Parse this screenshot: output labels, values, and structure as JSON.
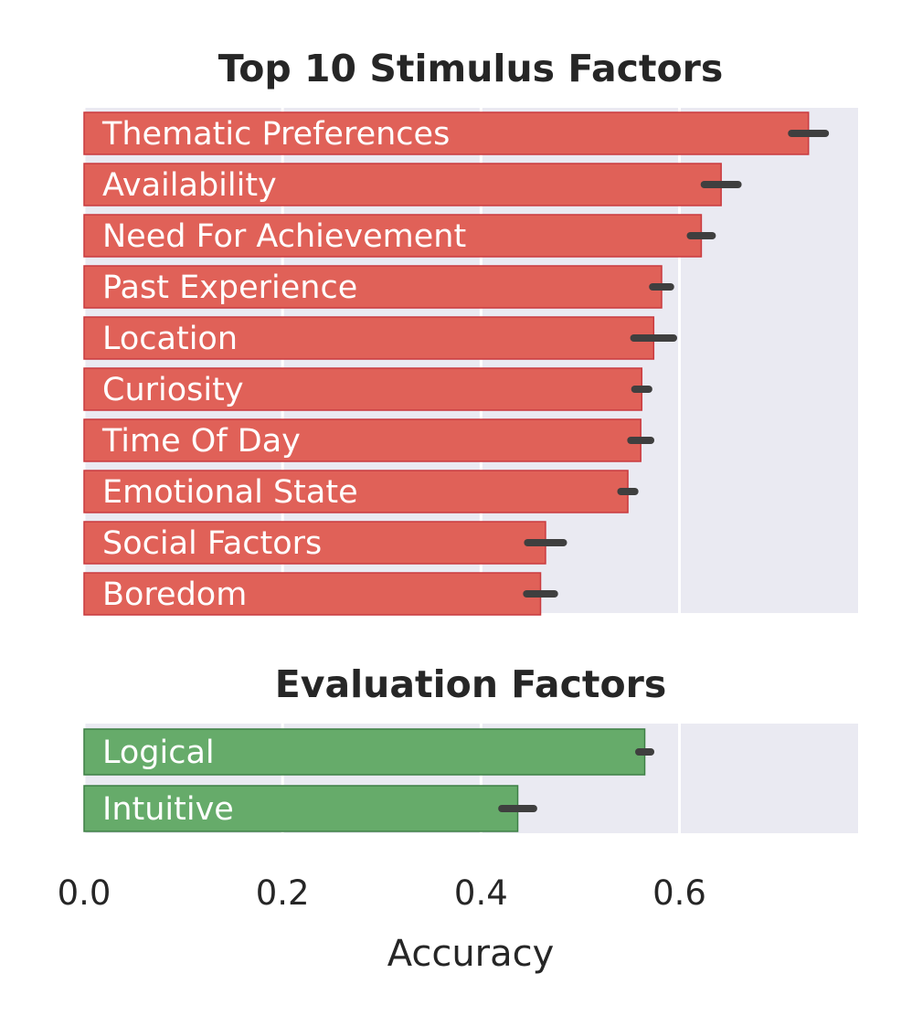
{
  "chart_data": {
    "type": "bar",
    "orientation": "horizontal",
    "xlabel": "Accuracy",
    "xlim": [
      0.0,
      0.78
    ],
    "xticks": [
      0.0,
      0.2,
      0.4,
      0.6
    ],
    "xtick_labels": [
      "0.0",
      "0.2",
      "0.4",
      "0.6"
    ],
    "grid": true,
    "panels": [
      {
        "id": "stimulus",
        "title": "Top 10 Stimulus Factors",
        "color": "#e06158",
        "edge_color": "#c93a3f",
        "categories": [
          "Thematic Preferences",
          "Availability",
          "Need For Achievement",
          "Past Experience",
          "Location",
          "Curiosity",
          "Time Of Day",
          "Emotional State",
          "Social Factors",
          "Boredom"
        ],
        "values": [
          0.73,
          0.642,
          0.622,
          0.582,
          0.574,
          0.562,
          0.561,
          0.548,
          0.465,
          0.46
        ],
        "error_low": [
          0.713,
          0.625,
          0.611,
          0.573,
          0.554,
          0.555,
          0.551,
          0.541,
          0.447,
          0.446
        ],
        "error_high": [
          0.747,
          0.659,
          0.633,
          0.591,
          0.594,
          0.569,
          0.571,
          0.555,
          0.483,
          0.474
        ]
      },
      {
        "id": "evaluation",
        "title": "Evaluation Factors",
        "color": "#66ab6a",
        "edge_color": "#3e7f46",
        "categories": [
          "Logical",
          "Intuitive"
        ],
        "values": [
          0.565,
          0.437
        ],
        "error_low": [
          0.559,
          0.421
        ],
        "error_high": [
          0.571,
          0.453
        ]
      }
    ]
  },
  "colors": {
    "panel_background": "#eaeaf2",
    "grid": "#ffffff",
    "error_bar": "#3f3f3f",
    "text": "#262626"
  }
}
